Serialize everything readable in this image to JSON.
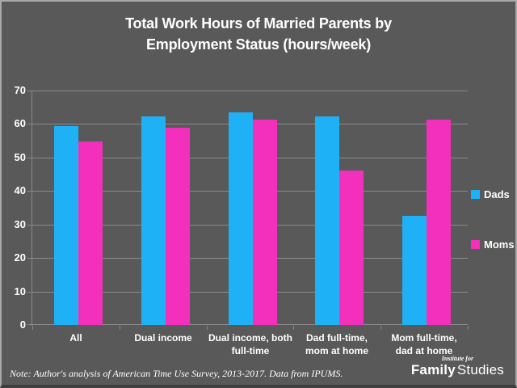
{
  "title": "Total Work Hours of Married Parents by\nEmployment Status (hours/week)",
  "note": "Note: Author's analysis of American Time Use Survey, 2013-2017. Data from IPUMS.",
  "logo": {
    "top": "Institute for",
    "bold": "Family",
    "light": "Studies"
  },
  "colors": {
    "background": "#595959",
    "gridline": "#8a8a8a",
    "text": "#ffffff",
    "dads": "#1fb1f5",
    "moms": "#f230bc"
  },
  "legend": [
    {
      "label": "Dads"
    },
    {
      "label": "Moms"
    }
  ],
  "chart_data": {
    "type": "bar",
    "categories": [
      "All",
      "Dual income",
      "Dual income, both\nfull-time",
      "Dad full-time,\nmom at home",
      "Mom full-time,\ndad at home"
    ],
    "series": [
      {
        "name": "Dads",
        "color": "#1fb1f5",
        "values": [
          59.3,
          62.2,
          63.4,
          62.3,
          32.5
        ]
      },
      {
        "name": "Moms",
        "color": "#f230bc",
        "values": [
          54.8,
          59.0,
          61.4,
          46.1,
          61.2
        ]
      }
    ],
    "title": "Total Work Hours of Married Parents by Employment Status (hours/week)",
    "xlabel": "",
    "ylabel": "",
    "ylim": [
      0,
      70
    ],
    "ytick_interval": 10,
    "grid": true,
    "legend_position": "right"
  }
}
